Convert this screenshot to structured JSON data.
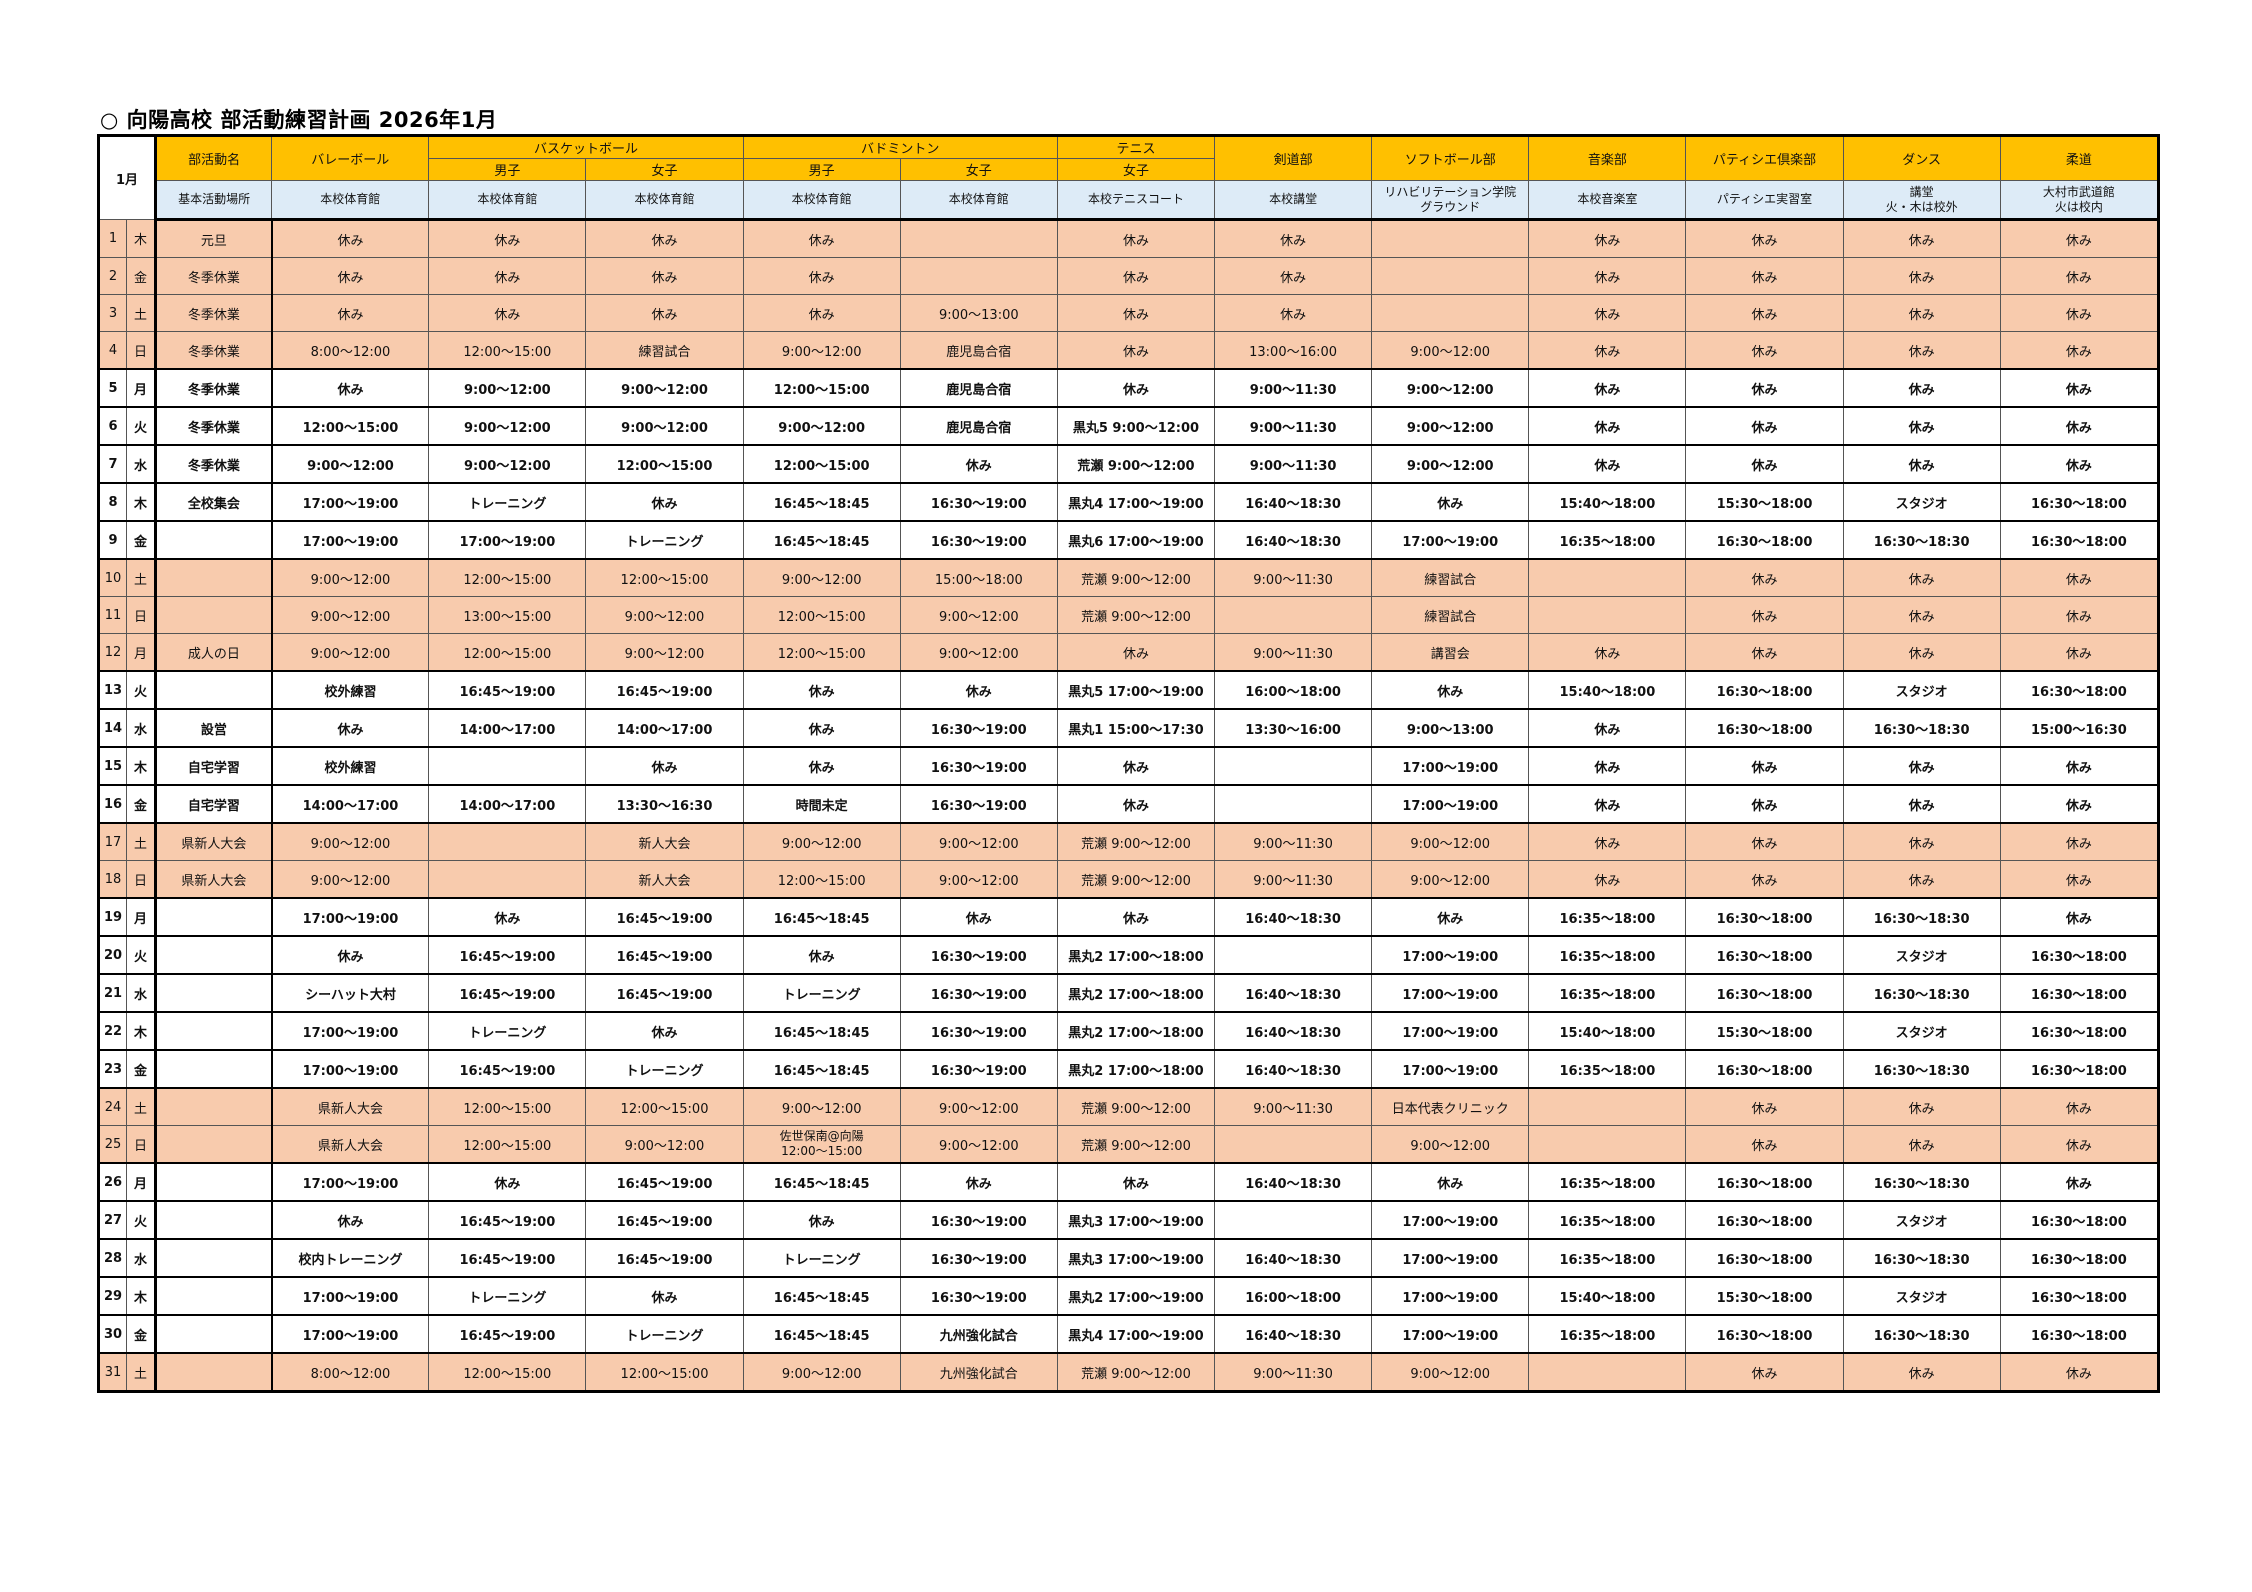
{
  "title": "○ 向陽高校 部活動練習計画  2026年1月",
  "colors": {
    "header": "#ffc000",
    "location_row": "#ddebf7",
    "holiday_row": "#f8cbad"
  },
  "header": {
    "month": "1月",
    "club_label": "部活動名",
    "place_label": "基本活動場所",
    "clubs": [
      {
        "name": "バレーボール",
        "place": "本校体育館"
      },
      {
        "name": "バスケットボール",
        "sub": [
          "男子",
          "女子"
        ],
        "places": [
          "本校体育館",
          "本校体育館"
        ]
      },
      {
        "name": "バドミントン",
        "sub": [
          "男子",
          "女子"
        ],
        "places": [
          "本校体育館",
          "本校体育館"
        ]
      },
      {
        "name": "テニス",
        "sub": [
          "女子"
        ],
        "places": [
          "本校テニスコート"
        ]
      },
      {
        "name": "剣道部",
        "place": "本校講堂"
      },
      {
        "name": "ソフトボール部",
        "place": "リハビリテーション学院\nグラウンド"
      },
      {
        "name": "音楽部",
        "place": "本校音楽室"
      },
      {
        "name": "パティシエ倶楽部",
        "place": "パティシエ実習室"
      },
      {
        "name": "ダンス",
        "place": "講堂\n火・木は校外"
      },
      {
        "name": "柔道",
        "place": "大村市武道館\n火は校内"
      }
    ]
  },
  "rows": [
    {
      "day": "1",
      "wd": "木",
      "event": "元旦",
      "holiday": true,
      "cells": [
        "休み",
        "休み",
        "休み",
        "休み",
        "",
        "休み",
        "休み",
        "",
        "休み",
        "休み",
        "休み",
        "休み"
      ]
    },
    {
      "day": "2",
      "wd": "金",
      "event": "冬季休業",
      "holiday": true,
      "cells": [
        "休み",
        "休み",
        "休み",
        "休み",
        "",
        "休み",
        "休み",
        "",
        "休み",
        "休み",
        "休み",
        "休み"
      ]
    },
    {
      "day": "3",
      "wd": "土",
      "event": "冬季休業",
      "holiday": true,
      "cells": [
        "休み",
        "休み",
        "休み",
        "休み",
        "9:00～13:00",
        "休み",
        "休み",
        "",
        "休み",
        "休み",
        "休み",
        "休み"
      ]
    },
    {
      "day": "4",
      "wd": "日",
      "event": "冬季休業",
      "holiday": true,
      "cells": [
        "8:00～12:00",
        "12:00～15:00",
        "練習試合",
        "9:00～12:00",
        "鹿児島合宿",
        "休み",
        "13:00～16:00",
        "9:00～12:00",
        "休み",
        "休み",
        "休み",
        "休み"
      ]
    },
    {
      "day": "5",
      "wd": "月",
      "event": "冬季休業",
      "holiday": false,
      "cells": [
        "休み",
        "9:00～12:00",
        "9:00～12:00",
        "12:00～15:00",
        "鹿児島合宿",
        "休み",
        "9:00～11:30",
        "9:00～12:00",
        "休み",
        "休み",
        "休み",
        "休み"
      ]
    },
    {
      "day": "6",
      "wd": "火",
      "event": "冬季休業",
      "holiday": false,
      "cells": [
        "12:00～15:00",
        "9:00～12:00",
        "9:00～12:00",
        "9:00～12:00",
        "鹿児島合宿",
        "黒丸5  9:00～12:00",
        "9:00～11:30",
        "9:00～12:00",
        "休み",
        "休み",
        "休み",
        "休み"
      ]
    },
    {
      "day": "7",
      "wd": "水",
      "event": "冬季休業",
      "holiday": false,
      "cells": [
        "9:00～12:00",
        "9:00～12:00",
        "12:00～15:00",
        "12:00～15:00",
        "休み",
        "荒瀬  9:00～12:00",
        "9:00～11:30",
        "9:00～12:00",
        "休み",
        "休み",
        "休み",
        "休み"
      ]
    },
    {
      "day": "8",
      "wd": "木",
      "event": "全校集会",
      "holiday": false,
      "cells": [
        "17:00～19:00",
        "トレーニング",
        "休み",
        "16:45～18:45",
        "16:30～19:00",
        "黒丸4 17:00～19:00",
        "16:40～18:30",
        "休み",
        "15:40～18:00",
        "15:30～18:00",
        "スタジオ",
        "16:30～18:00"
      ]
    },
    {
      "day": "9",
      "wd": "金",
      "event": "",
      "holiday": false,
      "cells": [
        "17:00～19:00",
        "17:00～19:00",
        "トレーニング",
        "16:45～18:45",
        "16:30～19:00",
        "黒丸6 17:00～19:00",
        "16:40～18:30",
        "17:00～19:00",
        "16:35～18:00",
        "16:30～18:00",
        "16:30～18:30",
        "16:30～18:00"
      ]
    },
    {
      "day": "10",
      "wd": "土",
      "event": "",
      "holiday": true,
      "cells": [
        "9:00～12:00",
        "12:00～15:00",
        "12:00～15:00",
        "9:00～12:00",
        "15:00～18:00",
        "荒瀬  9:00～12:00",
        "9:00～11:30",
        "練習試合",
        "",
        "休み",
        "休み",
        "休み"
      ]
    },
    {
      "day": "11",
      "wd": "日",
      "event": "",
      "holiday": true,
      "cells": [
        "9:00～12:00",
        "13:00～15:00",
        "9:00～12:00",
        "12:00～15:00",
        "9:00～12:00",
        "荒瀬  9:00～12:00",
        "",
        "練習試合",
        "",
        "休み",
        "休み",
        "休み"
      ]
    },
    {
      "day": "12",
      "wd": "月",
      "event": "成人の日",
      "holiday": true,
      "cells": [
        "9:00～12:00",
        "12:00～15:00",
        "9:00～12:00",
        "12:00～15:00",
        "9:00～12:00",
        "休み",
        "9:00～11:30",
        "講習会",
        "休み",
        "休み",
        "休み",
        "休み"
      ]
    },
    {
      "day": "13",
      "wd": "火",
      "event": "",
      "holiday": false,
      "cells": [
        "校外練習",
        "16:45～19:00",
        "16:45～19:00",
        "休み",
        "休み",
        "黒丸5  17:00～19:00",
        "16:00～18:00",
        "休み",
        "15:40～18:00",
        "16:30～18:00",
        "スタジオ",
        "16:30～18:00"
      ]
    },
    {
      "day": "14",
      "wd": "水",
      "event": "設営",
      "holiday": false,
      "cells": [
        "休み",
        "14:00～17:00",
        "14:00～17:00",
        "休み",
        "16:30～19:00",
        "黒丸1 15:00～17:30",
        "13:30～16:00",
        "9:00～13:00",
        "休み",
        "16:30～18:00",
        "16:30～18:30",
        "15:00～16:30"
      ]
    },
    {
      "day": "15",
      "wd": "木",
      "event": "自宅学習",
      "holiday": false,
      "cells": [
        "校外練習",
        "",
        "休み",
        "休み",
        "16:30～19:00",
        "休み",
        "",
        "17:00～19:00",
        "休み",
        "休み",
        "休み",
        "休み"
      ]
    },
    {
      "day": "16",
      "wd": "金",
      "event": "自宅学習",
      "holiday": false,
      "cells": [
        "14:00～17:00",
        "14:00～17:00",
        "13:30～16:30",
        "時間未定",
        "16:30～19:00",
        "休み",
        "",
        "17:00～19:00",
        "休み",
        "休み",
        "休み",
        "休み"
      ]
    },
    {
      "day": "17",
      "wd": "土",
      "event": "県新人大会",
      "holiday": true,
      "cells": [
        "9:00～12:00",
        "",
        "新人大会",
        "9:00～12:00",
        "9:00～12:00",
        "荒瀬  9:00～12:00",
        "9:00～11:30",
        "9:00～12:00",
        "休み",
        "休み",
        "休み",
        "休み"
      ]
    },
    {
      "day": "18",
      "wd": "日",
      "event": "県新人大会",
      "holiday": true,
      "cells": [
        "9:00～12:00",
        "",
        "新人大会",
        "12:00～15:00",
        "9:00～12:00",
        "荒瀬  9:00～12:00",
        "9:00～11:30",
        "9:00～12:00",
        "休み",
        "休み",
        "休み",
        "休み"
      ]
    },
    {
      "day": "19",
      "wd": "月",
      "event": "",
      "holiday": false,
      "cells": [
        "17:00～19:00",
        "休み",
        "16:45～19:00",
        "16:45～18:45",
        "休み",
        "休み",
        "16:40～18:30",
        "休み",
        "16:35～18:00",
        "16:30～18:00",
        "16:30～18:30",
        "休み"
      ]
    },
    {
      "day": "20",
      "wd": "火",
      "event": "",
      "holiday": false,
      "cells": [
        "休み",
        "16:45～19:00",
        "16:45～19:00",
        "休み",
        "16:30～19:00",
        "黒丸2 17:00～18:00",
        "",
        "17:00～19:00",
        "16:35～18:00",
        "16:30～18:00",
        "スタジオ",
        "16:30～18:00"
      ]
    },
    {
      "day": "21",
      "wd": "水",
      "event": "",
      "holiday": false,
      "cells": [
        "シーハット大村",
        "16:45～19:00",
        "16:45～19:00",
        "トレーニング",
        "16:30～19:00",
        "黒丸2 17:00～18:00",
        "16:40～18:30",
        "17:00～19:00",
        "16:35～18:00",
        "16:30～18:00",
        "16:30～18:30",
        "16:30～18:00"
      ]
    },
    {
      "day": "22",
      "wd": "木",
      "event": "",
      "holiday": false,
      "cells": [
        "17:00～19:00",
        "トレーニング",
        "休み",
        "16:45～18:45",
        "16:30～19:00",
        "黒丸2 17:00～18:00",
        "16:40～18:30",
        "17:00～19:00",
        "15:40～18:00",
        "15:30～18:00",
        "スタジオ",
        "16:30～18:00"
      ]
    },
    {
      "day": "23",
      "wd": "金",
      "event": "",
      "holiday": false,
      "cells": [
        "17:00～19:00",
        "16:45～19:00",
        "トレーニング",
        "16:45～18:45",
        "16:30～19:00",
        "黒丸2  17:00～18:00",
        "16:40～18:30",
        "17:00～19:00",
        "16:35～18:00",
        "16:30～18:00",
        "16:30～18:30",
        "16:30～18:00"
      ]
    },
    {
      "day": "24",
      "wd": "土",
      "event": "",
      "holiday": true,
      "cells": [
        "県新人大会",
        "12:00～15:00",
        "12:00～15:00",
        "9:00～12:00",
        "9:00～12:00",
        "荒瀬  9:00～12:00",
        "9:00～11:30",
        "日本代表クリニック",
        "",
        "休み",
        "休み",
        "休み"
      ]
    },
    {
      "day": "25",
      "wd": "日",
      "event": "",
      "holiday": true,
      "cells": [
        "県新人大会",
        "12:00～15:00",
        "9:00～12:00",
        "佐世保南@向陽\n12:00～15:00",
        "9:00～12:00",
        "荒瀬  9:00～12:00",
        "",
        "9:00～12:00",
        "",
        "休み",
        "休み",
        "休み"
      ]
    },
    {
      "day": "26",
      "wd": "月",
      "event": "",
      "holiday": false,
      "cells": [
        "17:00～19:00",
        "休み",
        "16:45～19:00",
        "16:45～18:45",
        "休み",
        "休み",
        "16:40～18:30",
        "休み",
        "16:35～18:00",
        "16:30～18:00",
        "16:30～18:30",
        "休み"
      ]
    },
    {
      "day": "27",
      "wd": "火",
      "event": "",
      "holiday": false,
      "cells": [
        "休み",
        "16:45～19:00",
        "16:45～19:00",
        "休み",
        "16:30～19:00",
        "黒丸3 17:00～19:00",
        "",
        "17:00～19:00",
        "16:35～18:00",
        "16:30～18:00",
        "スタジオ",
        "16:30～18:00"
      ]
    },
    {
      "day": "28",
      "wd": "水",
      "event": "",
      "holiday": false,
      "cells": [
        "校内トレーニング",
        "16:45～19:00",
        "16:45～19:00",
        "トレーニング",
        "16:30～19:00",
        "黒丸3 17:00～19:00",
        "16:40～18:30",
        "17:00～19:00",
        "16:35～18:00",
        "16:30～18:00",
        "16:30～18:30",
        "16:30～18:00"
      ]
    },
    {
      "day": "29",
      "wd": "木",
      "event": "",
      "holiday": false,
      "cells": [
        "17:00～19:00",
        "トレーニング",
        "休み",
        "16:45～18:45",
        "16:30～19:00",
        "黒丸2 17:00～19:00",
        "16:00～18:00",
        "17:00～19:00",
        "15:40～18:00",
        "15:30～18:00",
        "スタジオ",
        "16:30～18:00"
      ]
    },
    {
      "day": "30",
      "wd": "金",
      "event": "",
      "holiday": false,
      "cells": [
        "17:00～19:00",
        "16:45～19:00",
        "トレーニング",
        "16:45～18:45",
        "九州強化試合",
        "黒丸4 17:00～19:00",
        "16:40～18:30",
        "17:00～19:00",
        "16:35～18:00",
        "16:30～18:00",
        "16:30～18:30",
        "16:30～18:00"
      ]
    },
    {
      "day": "31",
      "wd": "土",
      "event": "",
      "holiday": true,
      "cells": [
        "8:00～12:00",
        "12:00～15:00",
        "12:00～15:00",
        "9:00～12:00",
        "九州強化試合",
        "荒瀬  9:00～12:00",
        "9:00～11:30",
        "9:00～12:00",
        "",
        "休み",
        "休み",
        "休み"
      ]
    }
  ]
}
